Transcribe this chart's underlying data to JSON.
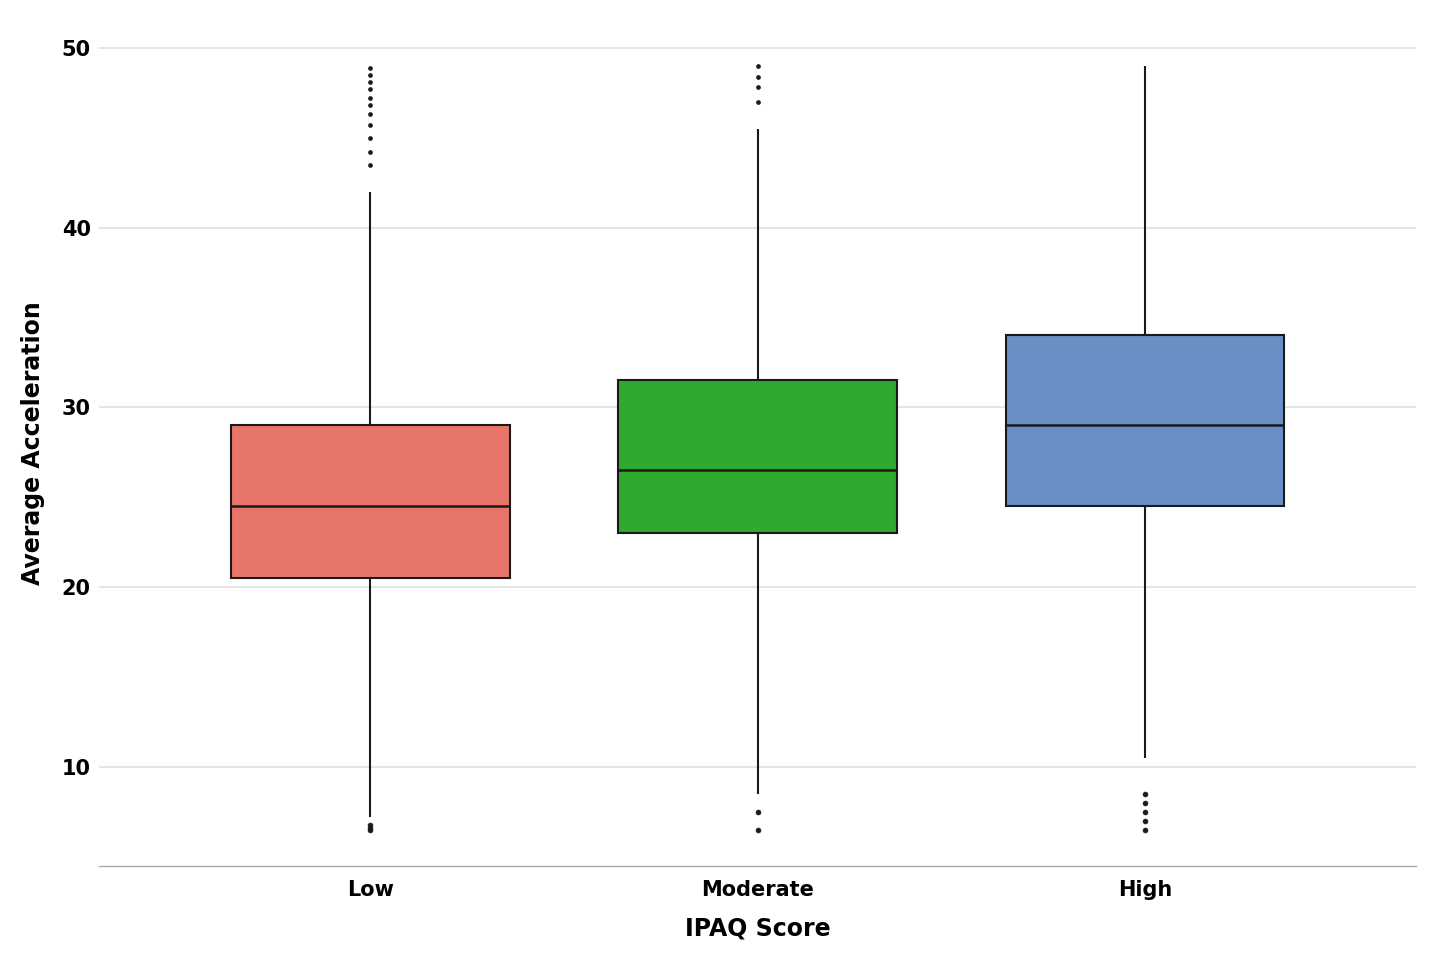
{
  "groups": [
    "Low",
    "Moderate",
    "High"
  ],
  "positions": [
    1,
    2,
    3
  ],
  "box_stats": [
    {
      "label": "Low",
      "q1": 20.5,
      "median": 24.5,
      "q3": 29.0,
      "whisker_low": 7.2,
      "whisker_high": 42.0,
      "fliers_low": [
        6.5,
        6.6,
        6.75
      ],
      "fliers_high": [
        43.5,
        44.2,
        45.0,
        45.7,
        46.3,
        46.8,
        47.2,
        47.7,
        48.1,
        48.5,
        48.9
      ],
      "color": "#E8756A",
      "edge_color": "#1a1a1a"
    },
    {
      "label": "Moderate",
      "q1": 23.0,
      "median": 26.5,
      "q3": 31.5,
      "whisker_low": 8.5,
      "whisker_high": 45.5,
      "fliers_low": [
        6.5,
        7.5
      ],
      "fliers_high": [
        47.0,
        47.8,
        48.4,
        49.0
      ],
      "color": "#2EAA2E",
      "edge_color": "#1a1a1a"
    },
    {
      "label": "High",
      "q1": 24.5,
      "median": 29.0,
      "q3": 34.0,
      "whisker_low": 10.5,
      "whisker_high": 49.0,
      "fliers_low": [
        6.5,
        7.0,
        7.5,
        8.0,
        8.5
      ],
      "fliers_high": [],
      "color": "#6A8FC4",
      "edge_color": "#1a1a1a"
    }
  ],
  "xlabel": "IPAQ Score",
  "ylabel": "Average Acceleration",
  "ylim": [
    4.5,
    51.5
  ],
  "yticks": [
    10,
    20,
    30,
    40,
    50
  ],
  "plot_bg_color": "#ffffff",
  "fig_bg_color": "#ffffff",
  "grid_color": "#e0e0e0",
  "box_width": 0.72,
  "linewidth": 1.5,
  "flier_size": 3.5,
  "xlabel_fontsize": 17,
  "ylabel_fontsize": 17,
  "tick_fontsize": 15
}
